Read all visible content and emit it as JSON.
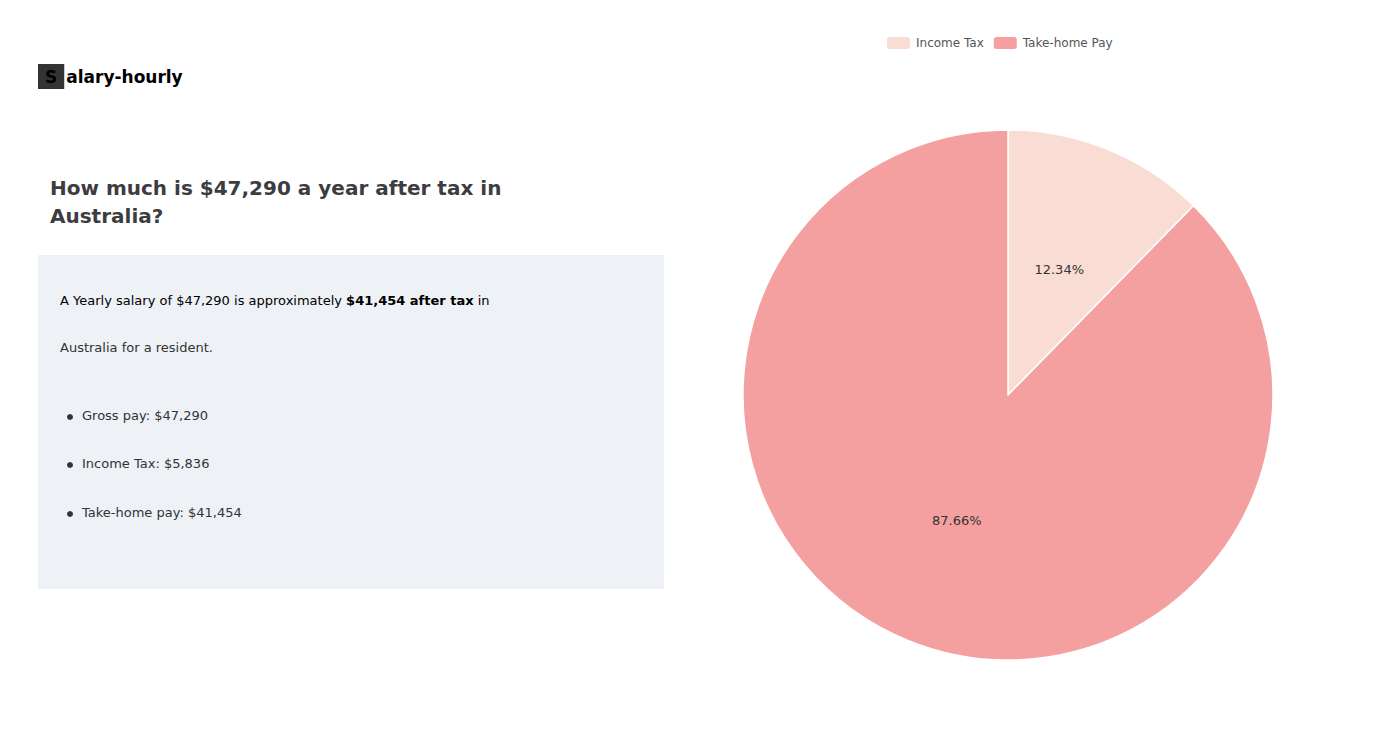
{
  "chart_data": {
    "type": "pie",
    "title": "How much is $47,290 a year after tax in\nAustralia?",
    "categories": [
      "Income Tax",
      "Take-home Pay"
    ],
    "values": [
      12.34,
      87.66
    ],
    "value_labels": [
      "12.34%",
      "87.66%"
    ],
    "colors": [
      "#f9ddd4",
      "#f4a0a0"
    ],
    "legend": "top",
    "data_labels": true,
    "annotations": [
      "S",
      "alary-hourly",
      "A Yearly salary of $47,290 is approximately ",
      "$41,454 after tax",
      " in",
      "Australia for a resident.",
      "Gross pay: $47,290",
      "Income Tax: $5,836",
      "Take-home pay: $41,454"
    ]
  }
}
